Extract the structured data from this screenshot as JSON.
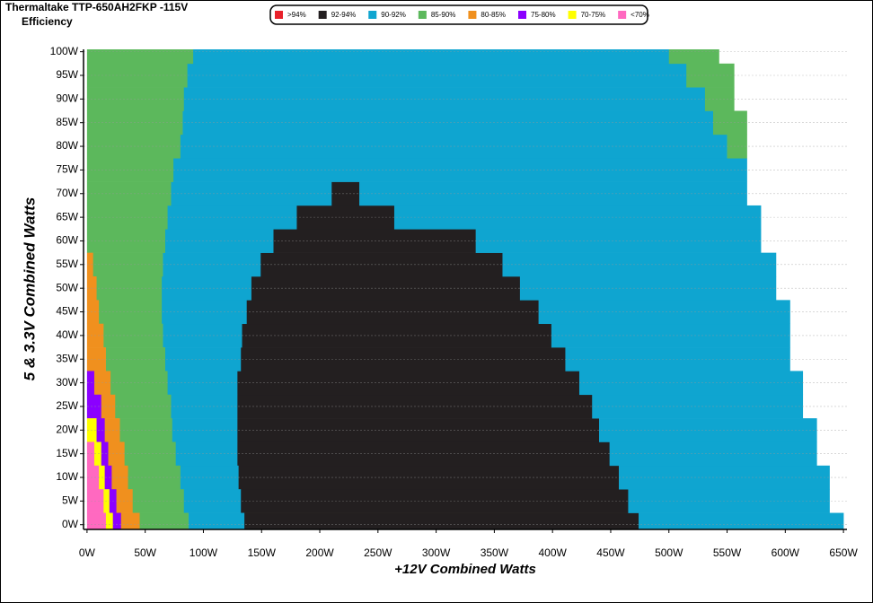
{
  "chart_data": {
    "type": "region-map",
    "title": "Thermaltake TTP-650AH2FKP -115V",
    "subtitle": "Efficiency",
    "x_label": "+12V Combined Watts",
    "y_label": "5 & 3.3V Combined Watts",
    "xlim": [
      -3,
      653
    ],
    "ylim": [
      -1,
      100.5
    ],
    "grid": true,
    "xticks": [
      {
        "value": 0,
        "label": "0W"
      },
      {
        "value": 50,
        "label": "50W"
      },
      {
        "value": 100,
        "label": "100W"
      },
      {
        "value": 150,
        "label": "150W"
      },
      {
        "value": 200,
        "label": "200W"
      },
      {
        "value": 250,
        "label": "250W"
      },
      {
        "value": 300,
        "label": "300W"
      },
      {
        "value": 350,
        "label": "350W"
      },
      {
        "value": 400,
        "label": "400W"
      },
      {
        "value": 450,
        "label": "450W"
      },
      {
        "value": 500,
        "label": "500W"
      },
      {
        "value": 550,
        "label": "550W"
      },
      {
        "value": 600,
        "label": "600W"
      },
      {
        "value": 650,
        "label": "650W"
      }
    ],
    "yticks": [
      {
        "value": 0,
        "label": "0W"
      },
      {
        "value": 5,
        "label": "5W"
      },
      {
        "value": 10,
        "label": "10W"
      },
      {
        "value": 15,
        "label": "15W"
      },
      {
        "value": 20,
        "label": "20W"
      },
      {
        "value": 25,
        "label": "25W"
      },
      {
        "value": 30,
        "label": "30W"
      },
      {
        "value": 35,
        "label": "35W"
      },
      {
        "value": 40,
        "label": "40W"
      },
      {
        "value": 45,
        "label": "45W"
      },
      {
        "value": 50,
        "label": "50W"
      },
      {
        "value": 55,
        "label": "55W"
      },
      {
        "value": 60,
        "label": "60W"
      },
      {
        "value": 65,
        "label": "65W"
      },
      {
        "value": 70,
        "label": "70W"
      },
      {
        "value": 75,
        "label": "75W"
      },
      {
        "value": 80,
        "label": "80W"
      },
      {
        "value": 85,
        "label": "85W"
      },
      {
        "value": 90,
        "label": "90W"
      },
      {
        "value": 95,
        "label": "95W"
      },
      {
        "value": 100,
        "label": "100W"
      }
    ],
    "y": [
      0,
      5,
      10,
      15,
      20,
      25,
      30,
      35,
      40,
      45,
      50,
      55,
      60,
      65,
      70,
      75,
      80,
      85,
      90,
      95,
      100
    ],
    "series": [
      {
        "name": ">94%",
        "color": "#e8202a"
      },
      {
        "name": "92-94%",
        "color": "#231f20",
        "spans": [
          [
            [
              135,
              474
            ]
          ],
          [
            [
              132,
              465
            ]
          ],
          [
            [
              130,
              457
            ]
          ],
          [
            [
              129,
              449
            ]
          ],
          [
            [
              129,
              440
            ]
          ],
          [
            [
              129,
              434
            ]
          ],
          [
            [
              129,
              423
            ]
          ],
          [
            [
              132,
              411
            ]
          ],
          [
            [
              133,
              399
            ]
          ],
          [
            [
              137,
              388
            ]
          ],
          [
            [
              141,
              372
            ]
          ],
          [
            [
              149,
              357
            ]
          ],
          [
            [
              160,
              334
            ]
          ],
          [
            [
              180,
              264
            ]
          ],
          [
            [
              210,
              234
            ]
          ]
        ]
      },
      {
        "name": "90-92%",
        "color": "#0fa5d0",
        "spans": [
          [
            [
              87,
              135
            ],
            [
              474,
              650
            ]
          ],
          [
            [
              83,
              132
            ],
            [
              465,
              638
            ]
          ],
          [
            [
              80,
              130
            ],
            [
              457,
              638
            ]
          ],
          [
            [
              76,
              129
            ],
            [
              449,
              627
            ]
          ],
          [
            [
              73,
              129
            ],
            [
              440,
              627
            ]
          ],
          [
            [
              72,
              129
            ],
            [
              434,
              615
            ]
          ],
          [
            [
              69,
              129
            ],
            [
              423,
              615
            ]
          ],
          [
            [
              67,
              132
            ],
            [
              411,
              604
            ]
          ],
          [
            [
              65,
              133
            ],
            [
              399,
              604
            ]
          ],
          [
            [
              64,
              137
            ],
            [
              388,
              604
            ]
          ],
          [
            [
              64,
              141
            ],
            [
              372,
              592
            ]
          ],
          [
            [
              65,
              149
            ],
            [
              357,
              592
            ]
          ],
          [
            [
              67,
              160
            ],
            [
              334,
              579
            ]
          ],
          [
            [
              69,
              180
            ],
            [
              264,
              579
            ]
          ],
          [
            [
              72,
              210
            ],
            [
              234,
              567
            ]
          ],
          [
            [
              74,
              567
            ]
          ],
          [
            [
              80,
              550
            ]
          ],
          [
            [
              82,
              538
            ]
          ],
          [
            [
              83,
              531
            ]
          ],
          [
            [
              86,
              515
            ]
          ],
          [
            [
              91,
              500
            ]
          ]
        ]
      },
      {
        "name": "85-90%",
        "color": "#5cb85c",
        "spans": [
          [
            [
              45,
              87
            ]
          ],
          [
            [
              39,
              83
            ]
          ],
          [
            [
              35,
              80
            ]
          ],
          [
            [
              32,
              76
            ]
          ],
          [
            [
              28,
              73
            ]
          ],
          [
            [
              24,
              72
            ]
          ],
          [
            [
              20,
              69
            ]
          ],
          [
            [
              16,
              67
            ]
          ],
          [
            [
              14,
              65
            ]
          ],
          [
            [
              10,
              64
            ]
          ],
          [
            [
              8,
              64
            ]
          ],
          [
            [
              5,
              65
            ]
          ],
          [
            [
              0,
              67
            ]
          ],
          [
            [
              0,
              69
            ]
          ],
          [
            [
              0,
              72
            ]
          ],
          [
            [
              0,
              74
            ]
          ],
          [
            [
              0,
              80
            ],
            [
              550,
              567
            ]
          ],
          [
            [
              0,
              82
            ],
            [
              538,
              567
            ]
          ],
          [
            [
              0,
              83
            ],
            [
              531,
              556
            ]
          ],
          [
            [
              0,
              86
            ],
            [
              515,
              556
            ]
          ],
          [
            [
              0,
              91
            ],
            [
              500,
              543
            ]
          ]
        ]
      },
      {
        "name": "80-85%",
        "color": "#f0901e",
        "spans": [
          [
            [
              29,
              45
            ]
          ],
          [
            [
              25,
              39
            ]
          ],
          [
            [
              21,
              35
            ]
          ],
          [
            [
              18,
              32
            ]
          ],
          [
            [
              15,
              28
            ]
          ],
          [
            [
              12,
              24
            ]
          ],
          [
            [
              6,
              20
            ]
          ],
          [
            [
              0,
              16
            ]
          ],
          [
            [
              0,
              14
            ]
          ],
          [
            [
              0,
              10
            ]
          ],
          [
            [
              0,
              8
            ]
          ],
          [
            [
              0,
              5
            ]
          ]
        ]
      },
      {
        "name": "75-80%",
        "color": "#8b00ff",
        "spans": [
          [
            [
              22,
              29
            ]
          ],
          [
            [
              19,
              25
            ]
          ],
          [
            [
              15,
              21
            ]
          ],
          [
            [
              12,
              18
            ]
          ],
          [
            [
              8,
              15
            ]
          ],
          [
            [
              0,
              12
            ]
          ],
          [
            [
              0,
              6
            ]
          ]
        ]
      },
      {
        "name": "70-75%",
        "color": "#ffff00",
        "spans": [
          [
            [
              16,
              22
            ]
          ],
          [
            [
              14,
              19
            ]
          ],
          [
            [
              10,
              15
            ]
          ],
          [
            [
              6,
              12
            ]
          ],
          [
            [
              0,
              8
            ]
          ]
        ]
      },
      {
        "name": "<70%",
        "color": "#ff69c0",
        "spans": [
          [
            [
              0,
              16
            ]
          ],
          [
            [
              0,
              14
            ]
          ],
          [
            [
              0,
              10
            ]
          ],
          [
            [
              0,
              6
            ]
          ]
        ]
      }
    ]
  }
}
